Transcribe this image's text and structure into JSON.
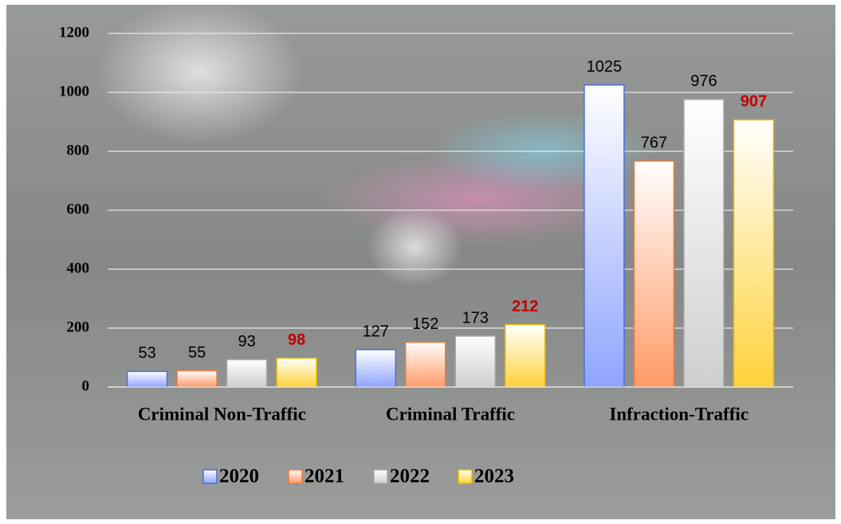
{
  "chart_data": {
    "type": "bar",
    "categories": [
      "Criminal Non-Traffic",
      "Criminal Traffic",
      "Infraction-Traffic"
    ],
    "series": [
      {
        "name": "2020",
        "color": "#8fa4ff",
        "border": "#4a6fe0",
        "values": [
          53,
          127,
          1025
        ]
      },
      {
        "name": "2021",
        "color": "#ff9a66",
        "border": "#ee7a3a",
        "values": [
          55,
          152,
          767
        ]
      },
      {
        "name": "2022",
        "color": "#cfcfcf",
        "border": "#a8a8a8",
        "values": [
          93,
          173,
          976
        ]
      },
      {
        "name": "2023",
        "color": "#ffd23a",
        "border": "#e8b800",
        "label_color": "#c00000",
        "values": [
          98,
          212,
          907
        ]
      }
    ],
    "ylim": [
      0,
      1200
    ],
    "yticks": [
      0,
      200,
      400,
      600,
      800,
      1000,
      1200
    ],
    "grid": true,
    "legend": "bottom"
  }
}
